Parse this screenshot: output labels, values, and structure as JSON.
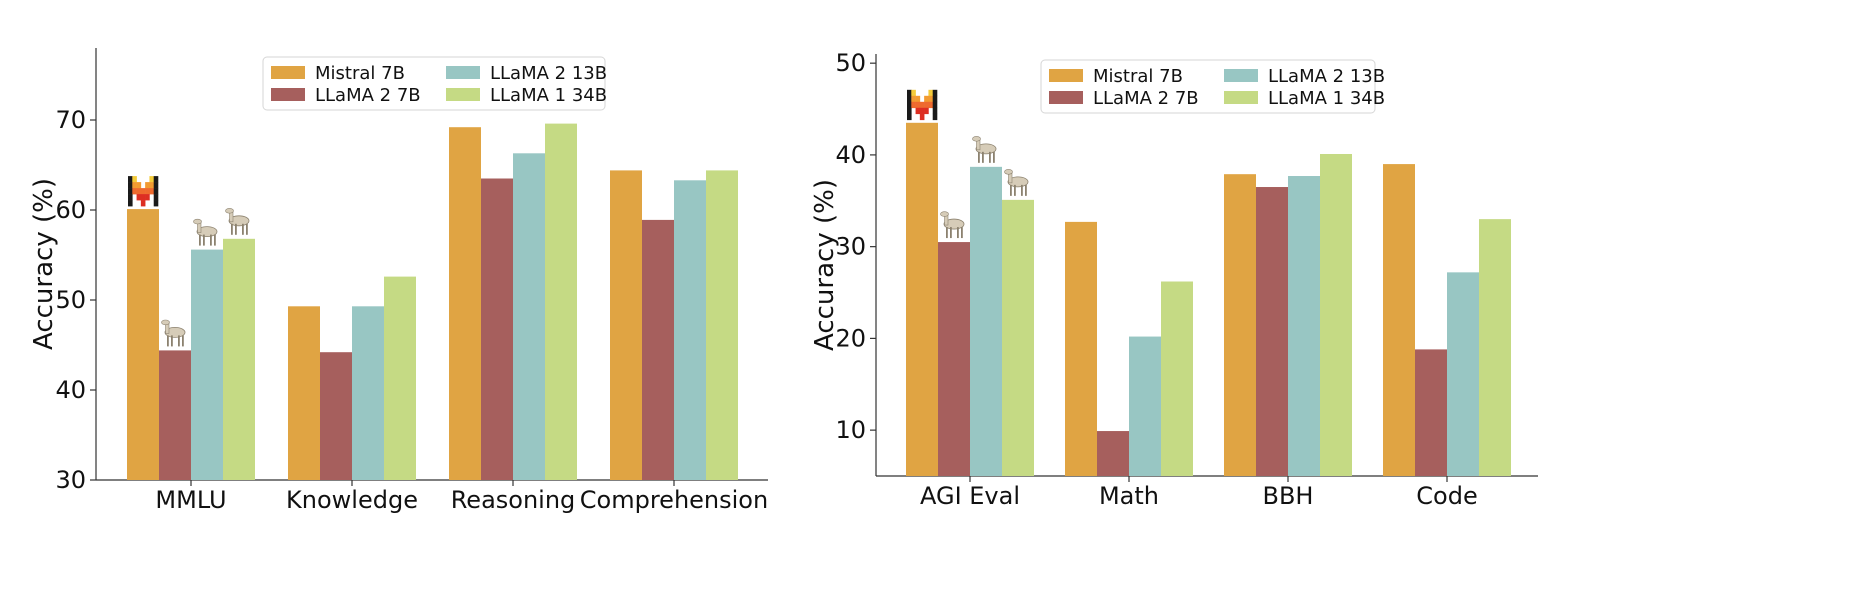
{
  "chart_data": [
    {
      "type": "bar",
      "title": "",
      "xlabel": "",
      "ylabel": "Accuracy (%)",
      "ylim": [
        30,
        78
      ],
      "yticks": [
        30,
        40,
        50,
        60,
        70
      ],
      "categories": [
        "MMLU",
        "Knowledge",
        "Reasoning",
        "Comprehension"
      ],
      "series": [
        {
          "name": "Mistral 7B",
          "values": [
            60.1,
            49.3,
            69.2,
            64.4
          ]
        },
        {
          "name": "LLaMA 2 7B",
          "values": [
            44.4,
            44.2,
            63.5,
            58.9
          ]
        },
        {
          "name": "LLaMA 2 13B",
          "values": [
            55.6,
            49.3,
            66.3,
            63.3
          ]
        },
        {
          "name": "LLaMA 1 34B",
          "values": [
            56.8,
            52.6,
            69.6,
            64.4
          ]
        }
      ],
      "legend": {
        "location": "top-center",
        "columns": 2
      },
      "grid": false,
      "logo_markers": [
        {
          "category": 0,
          "series": 0,
          "kind": "mistral-logo"
        },
        {
          "category": 0,
          "series": 1,
          "kind": "llama-icon"
        },
        {
          "category": 0,
          "series": 2,
          "kind": "llama-icon"
        },
        {
          "category": 0,
          "series": 3,
          "kind": "llama-icon"
        }
      ]
    },
    {
      "type": "bar",
      "title": "",
      "xlabel": "",
      "ylabel": "Accuracy (%)",
      "ylim": [
        5,
        51
      ],
      "yticks": [
        10,
        20,
        30,
        40,
        50
      ],
      "categories": [
        "AGI Eval",
        "Math",
        "BBH",
        "Code"
      ],
      "series": [
        {
          "name": "Mistral 7B",
          "values": [
            43.5,
            32.7,
            37.9,
            39.0
          ]
        },
        {
          "name": "LLaMA 2 7B",
          "values": [
            30.5,
            9.9,
            36.5,
            18.8
          ]
        },
        {
          "name": "LLaMA 2 13B",
          "values": [
            38.7,
            20.2,
            37.7,
            27.2
          ]
        },
        {
          "name": "LLaMA 1 34B",
          "values": [
            35.1,
            26.2,
            40.1,
            33.0
          ]
        }
      ],
      "legend": {
        "location": "top-center",
        "columns": 2
      },
      "grid": false,
      "logo_markers": [
        {
          "category": 0,
          "series": 0,
          "kind": "mistral-logo"
        },
        {
          "category": 0,
          "series": 1,
          "kind": "llama-icon"
        },
        {
          "category": 0,
          "series": 2,
          "kind": "llama-icon"
        },
        {
          "category": 0,
          "series": 3,
          "kind": "llama-icon"
        }
      ]
    }
  ],
  "colors": {
    "Mistral 7B": "#E0A443",
    "LLaMA 2 7B": "#A65F5D",
    "LLaMA 2 13B": "#98C6C3",
    "LLaMA 1 34B": "#C5DA84",
    "axis": "#333333",
    "logo_stripes": [
      "#1A1A1A",
      "#F4CB3A",
      "#F29B31",
      "#EE6A2E",
      "#DD2E22"
    ],
    "llama_body": "#D6CCB8"
  }
}
